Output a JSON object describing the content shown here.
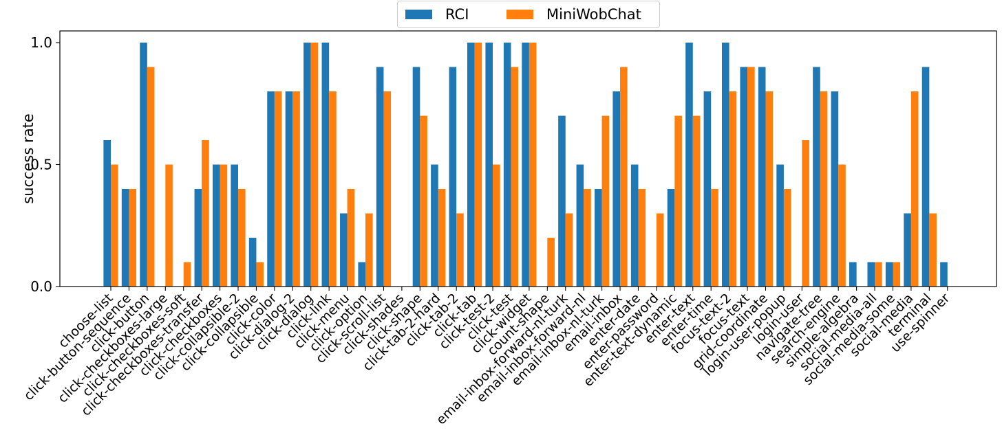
{
  "chart_data": {
    "type": "bar",
    "ylabel": "success rate",
    "ylim": [
      0,
      1.05
    ],
    "yticks": [
      "0.0",
      "0.5",
      "1.0"
    ],
    "grid": false,
    "legend_position": "top-center",
    "categories": [
      "choose-list",
      "click-button-sequence",
      "click-button",
      "click-checkboxes-large",
      "click-checkboxes-soft",
      "click-checkboxes-transfer",
      "click-checkboxes",
      "click-collapsible-2",
      "click-collapsible",
      "click-color",
      "click-dialog-2",
      "click-dialog",
      "click-link",
      "click-menu",
      "click-option",
      "click-scroll-list",
      "click-shades",
      "click-shape",
      "click-tab-2-hard",
      "click-tab-2",
      "click-tab",
      "click-test-2",
      "click-test",
      "click-widget",
      "count-shape",
      "email-inbox-forward-nl-turk",
      "email-inbox-forward-nl",
      "email-inbox-nl-turk",
      "email-inbox",
      "enter-date",
      "enter-password",
      "enter-text-dynamic",
      "enter-text",
      "enter-time",
      "focus-text-2",
      "focus-text",
      "grid-coordinate",
      "login-user-popup",
      "login-user",
      "navigate-tree",
      "search-engine",
      "simple-algebra",
      "social-media-all",
      "social-media-some",
      "social-media",
      "terminal",
      "use-spinner"
    ],
    "series": [
      {
        "name": "RCI",
        "color": "#1f77b4",
        "values": [
          0.6,
          0.4,
          1.0,
          0,
          0,
          0.4,
          0.5,
          0.5,
          0.2,
          0.8,
          0.8,
          1.0,
          1.0,
          0.3,
          0.1,
          0.9,
          0,
          0.9,
          0.5,
          0.9,
          1.0,
          1.0,
          1.0,
          1.0,
          0,
          0.7,
          0.5,
          0.4,
          0.8,
          0.5,
          0,
          0.4,
          1.0,
          0.8,
          1.0,
          0.9,
          0.9,
          0.5,
          0,
          0.9,
          0.8,
          0.1,
          0.1,
          0.1,
          0.3,
          0.9,
          0.1
        ]
      },
      {
        "name": "MiniWobChat",
        "color": "#ff7f0e",
        "values": [
          0.5,
          0.4,
          0.9,
          0.5,
          0.1,
          0.6,
          0.5,
          0.4,
          0.1,
          0.8,
          0.8,
          1.0,
          0.8,
          0.4,
          0.3,
          0.8,
          0,
          0.7,
          0.4,
          0.3,
          1.0,
          0.5,
          0.9,
          1.0,
          0.2,
          0.3,
          0.4,
          0.7,
          0.9,
          0.4,
          0.3,
          0.7,
          0.7,
          0.4,
          0.8,
          0.9,
          0.8,
          0.4,
          0.6,
          0.8,
          0.5,
          0,
          0.1,
          0.1,
          0.8,
          0.3,
          0
        ]
      }
    ]
  }
}
